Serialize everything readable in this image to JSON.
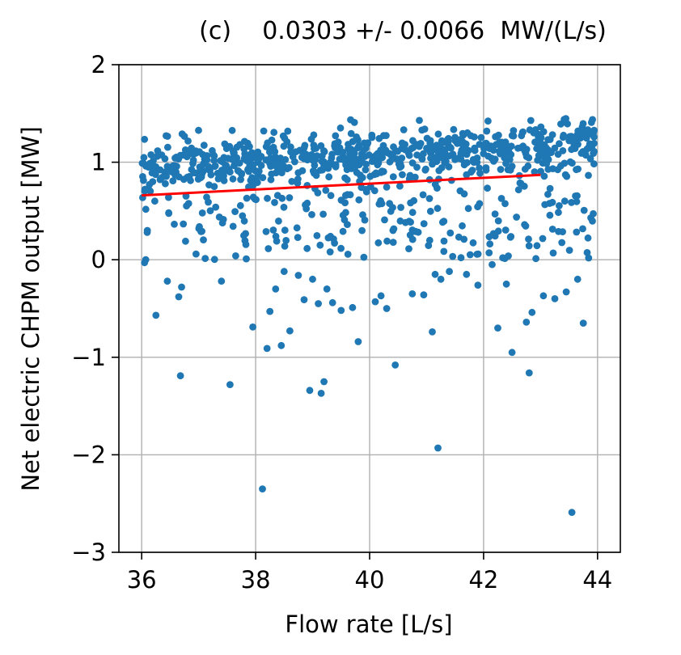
{
  "chart_data": {
    "type": "scatter",
    "title": "(c)    0.0303 +/- 0.0066  MW/(L/s)",
    "xlabel": "Flow rate [L/s]",
    "ylabel": "Net electric CHPM output [MW]",
    "xlim": [
      35.6,
      44.4
    ],
    "ylim": [
      -3,
      2
    ],
    "xticks": [
      36,
      38,
      40,
      42,
      44
    ],
    "xtick_labels": [
      "36",
      "38",
      "40",
      "42",
      "44"
    ],
    "yticks": [
      -3,
      -2,
      -1,
      0,
      1,
      2
    ],
    "ytick_labels": [
      "−3",
      "−2",
      "−1",
      "0",
      "1",
      "2"
    ],
    "grid": true,
    "legend": "none",
    "colors": {
      "points": "#1f77b4",
      "fit_line": "#ff0000",
      "grid": "#b0b0b0"
    },
    "fit_line": {
      "x": [
        36.0,
        43.0
      ],
      "y": [
        0.66,
        0.87
      ]
    },
    "outliers": {
      "x": [
        36.05,
        36.1,
        36.25,
        36.45,
        36.65,
        36.7,
        36.68,
        37.4,
        37.55,
        37.65,
        37.95,
        38.12,
        38.2,
        38.25,
        38.35,
        38.45,
        38.5,
        38.6,
        38.75,
        38.85,
        38.95,
        39.0,
        39.1,
        39.15,
        39.2,
        39.25,
        39.35,
        39.5,
        39.7,
        39.8,
        40.1,
        40.2,
        40.3,
        40.45,
        40.75,
        40.95,
        41.1,
        41.2,
        41.15,
        41.25,
        41.4,
        41.7,
        41.9,
        42.15,
        42.25,
        42.4,
        42.5,
        42.75,
        42.8,
        42.85,
        43.05,
        43.25,
        43.45,
        43.55,
        43.65,
        43.75
      ],
      "y": [
        -0.03,
        0.3,
        -0.57,
        -0.22,
        -0.38,
        -0.28,
        -1.19,
        -0.22,
        -1.28,
        0.04,
        -0.69,
        -2.35,
        -0.91,
        -0.53,
        -0.3,
        -0.88,
        -0.12,
        -0.73,
        -0.16,
        -0.41,
        -1.34,
        -0.2,
        -0.45,
        -1.37,
        -1.25,
        -0.3,
        -0.44,
        -0.52,
        -0.49,
        -0.84,
        -0.43,
        -0.37,
        -0.5,
        -1.08,
        -0.35,
        -0.36,
        -0.74,
        -1.93,
        -0.15,
        -0.2,
        -0.12,
        -0.15,
        -0.26,
        -0.05,
        -0.7,
        -0.25,
        -0.95,
        -0.64,
        -1.16,
        -0.54,
        -0.37,
        -0.4,
        -0.33,
        -2.59,
        -0.2,
        -0.65
      ]
    },
    "scatter_model": {
      "n_points": 900,
      "x_range": [
        36.0,
        43.95
      ],
      "upper_band_mean_at_36": 0.95,
      "upper_band_slope": 0.0303,
      "upper_band_spread": 0.13,
      "lower_fraction": 0.28,
      "lower_range": [
        0.0,
        1.0
      ]
    }
  }
}
